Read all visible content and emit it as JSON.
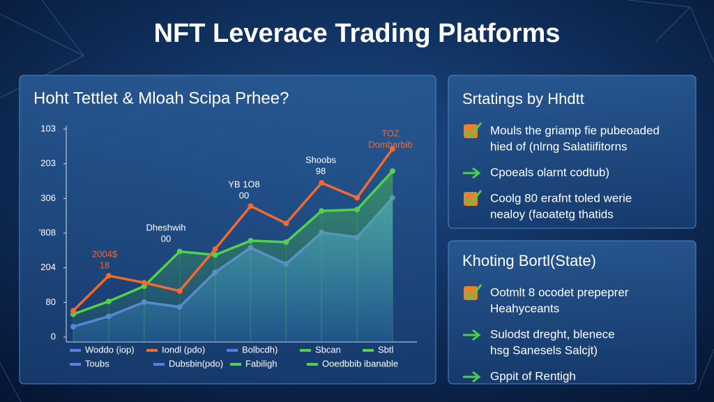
{
  "header": {
    "title": "NFT Leverace Trading Platforms"
  },
  "chart_data": {
    "type": "line",
    "title": "Hoht Tettlet & Mloah Scipa Prhee?",
    "categories": [
      null,
      null,
      null,
      null,
      null,
      null,
      null,
      null,
      null,
      null
    ],
    "series": [
      {
        "name": "Iondl (pdo)",
        "color": "#f26a2e",
        "values": [
          0.76,
          1.77,
          1.57,
          1.33,
          2.54,
          3.78,
          3.28,
          4.45,
          4.02,
          5.43
        ]
      },
      {
        "name": "Sbcan",
        "color": "#52d14a",
        "values": [
          0.66,
          1.03,
          1.47,
          2.47,
          2.37,
          2.78,
          2.74,
          3.64,
          3.68,
          4.79
        ]
      },
      {
        "name": "Toubs",
        "color": "#5b7de8",
        "values": [
          0.3,
          0.6,
          1.01,
          0.87,
          1.87,
          2.58,
          2.11,
          3.02,
          2.88,
          4.02
        ]
      }
    ],
    "ylim": [
      0,
      6
    ],
    "yticks": [
      0,
      {
        "value": 1,
        "label": "80"
      },
      {
        "value": 2,
        "label": "204"
      },
      {
        "value": 3,
        "label": "'808"
      },
      {
        "value": 4,
        "label": "306"
      },
      {
        "value": 5,
        "label": "203"
      },
      {
        "value": 6,
        "label": "103"
      }
    ],
    "annotations": [
      {
        "lines": [
          "2004$",
          "18"
        ],
        "color": "#f26a2e"
      },
      {
        "lines": [
          "Dheshwih",
          "00"
        ],
        "color": "#ffffff"
      },
      {
        "lines": [
          "YB 1O8",
          "00"
        ],
        "color": "#ffffff"
      },
      {
        "lines": [
          "Shoobs",
          "98"
        ],
        "color": "#ffffff"
      },
      {
        "lines": [
          "TOZ",
          "Dombarbib"
        ],
        "color": "#f26a2e"
      }
    ],
    "legend_extra": [
      {
        "label": "Woddo (iop)",
        "color": "#5b7de8"
      },
      {
        "label": "Bolbcdh)",
        "color": "#5b7de8"
      },
      {
        "label": "Sbtl",
        "color": "#52d14a"
      },
      {
        "label": "Dubsbin(pdo)",
        "color": "#5b7de8"
      },
      {
        "label": "Fabiligh",
        "color": "#52d14a"
      },
      {
        "label": "Ooedbbib ibanable",
        "color": "#52d14a"
      }
    ]
  },
  "panels": [
    {
      "title": "Srtatings by Hhdtt",
      "items": [
        {
          "icon": "check",
          "lines": [
            "Mouls the griamp fie pubeoaded",
            "hied of (nlrng Salatiifitorns"
          ]
        },
        {
          "icon": "arrow",
          "lines": [
            "Cpoeals olarnt codtub)"
          ]
        },
        {
          "icon": "check",
          "lines": [
            "Coolg 80 erafnt toled werie",
            "nealoy (faoatetg thatids"
          ]
        }
      ]
    },
    {
      "title": "Khoting Bortl(State)",
      "items": [
        {
          "icon": "check",
          "lines": [
            "Ootmlt 8 ocodet prepeprer",
            "Heahyceants"
          ]
        },
        {
          "icon": "arrow",
          "lines": [
            "Sulodst dreght, blenece",
            "hsg Sanesels Salcjt)"
          ]
        },
        {
          "icon": "arrow",
          "lines": [
            "Gppit of Rentigh"
          ]
        }
      ]
    }
  ]
}
